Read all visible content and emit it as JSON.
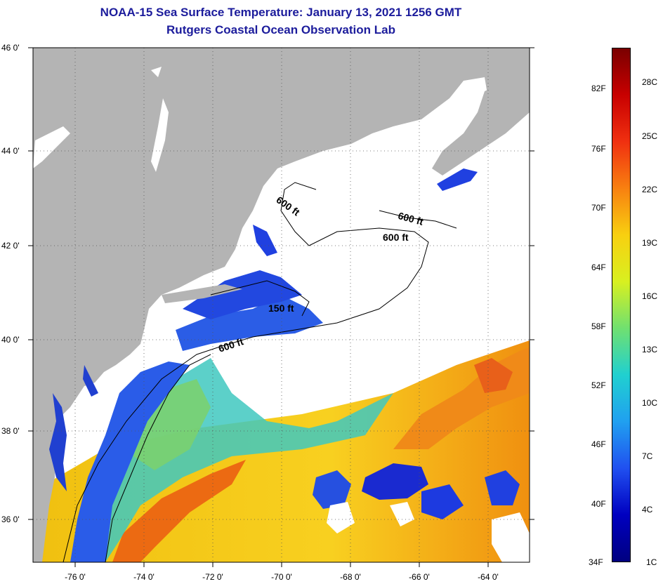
{
  "title": {
    "line1": "NOAA-15 Sea Surface Temperature:  January 13, 2021 1256 GMT",
    "line2": "Rutgers Coastal Ocean Observation Lab"
  },
  "map": {
    "lat_labels": [
      "46 0'",
      "44 0'",
      "42 0'",
      "40 0'",
      "38 0'",
      "36 0'"
    ],
    "lon_labels": [
      "-76 0'",
      "-74 0'",
      "-72 0'",
      "-70 0'",
      "-68 0'",
      "-66 0'",
      "-64 0'"
    ],
    "contour_labels": [
      "600 ft",
      "600 ft",
      "600 ft",
      "150 ft",
      "600 ft"
    ],
    "colors": {
      "land": "#b4b4b4",
      "cloud": "#ffffff",
      "cold": "#1f3fe0",
      "mid": "#28c0e0",
      "warm": "#f0c010",
      "hot": "#e86010"
    }
  },
  "colorbar": {
    "fahrenheit": [
      "82F",
      "76F",
      "70F",
      "64F",
      "58F",
      "52F",
      "46F",
      "40F",
      "34F"
    ],
    "celsius": [
      "28C",
      "25C",
      "22C",
      "19C",
      "16C",
      "13C",
      "10C",
      "7C",
      "4C",
      "1C"
    ],
    "gradient": [
      "#7a0000",
      "#c80000",
      "#f03010",
      "#f88010",
      "#f8d010",
      "#d8f020",
      "#70e070",
      "#20d0d0",
      "#20a0f0",
      "#2050f0",
      "#0000c0",
      "#000080"
    ]
  }
}
